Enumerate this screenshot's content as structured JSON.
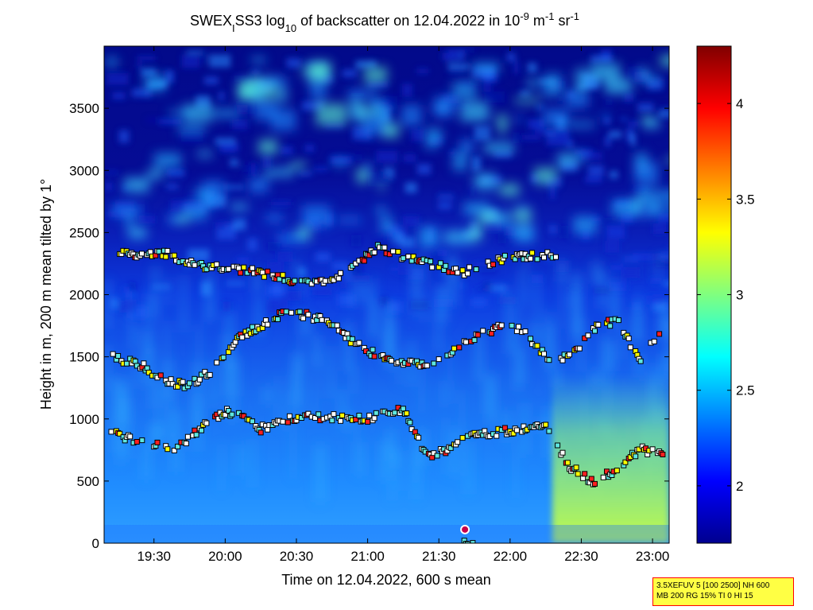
{
  "chart_data": {
    "type": "heatmap",
    "title": "SWEX_I SS3 log10 of backscatter on 12.04.2022 in 10^-9 m^-1 sr^-1",
    "title_parts": {
      "a": "SWEX",
      "sub1": "I",
      "b": "SS3 log",
      "sub2": "10",
      "c": " of backscatter on 12.04.2022 in 10",
      "sup1": "-9",
      "d": " m",
      "sup2": "-1",
      "e": " sr",
      "sup3": "-1"
    },
    "xlabel": "Time on 12.04.2022, 600 s mean",
    "ylabel": "Height in m, 200 m mean tilted by 1°",
    "x_range": [
      "19:09",
      "23:07"
    ],
    "x_ticks": [
      "19:30",
      "20:00",
      "20:30",
      "21:00",
      "21:30",
      "22:00",
      "22:30",
      "23:00"
    ],
    "ylim": [
      0,
      4000
    ],
    "y_ticks": [
      0,
      500,
      1000,
      1500,
      2000,
      2500,
      3000,
      3500
    ],
    "colorbar": {
      "range": [
        1.7,
        4.3
      ],
      "ticks": [
        2,
        2.5,
        3,
        3.5,
        4
      ],
      "colormap": "jet"
    },
    "cloud_layers": [
      {
        "name": "upper",
        "points": [
          [
            "19:12",
            2380
          ],
          [
            "19:22",
            2300
          ],
          [
            "19:35",
            2330
          ],
          [
            "19:45",
            2250
          ],
          [
            "19:55",
            2220
          ],
          [
            "20:05",
            2200
          ],
          [
            "20:15",
            2180
          ],
          [
            "20:30",
            2100
          ],
          [
            "20:45",
            2120
          ],
          [
            "21:05",
            2380
          ],
          [
            "21:15",
            2300
          ],
          [
            "21:25",
            2260
          ],
          [
            "21:40",
            2180
          ],
          [
            "22:00",
            2300
          ],
          [
            "22:10",
            2310
          ],
          [
            "22:20",
            2320
          ]
        ]
      },
      {
        "name": "middle",
        "points": [
          [
            "19:12",
            1500
          ],
          [
            "19:25",
            1430
          ],
          [
            "19:35",
            1300
          ],
          [
            "19:45",
            1270
          ],
          [
            "19:55",
            1400
          ],
          [
            "20:05",
            1650
          ],
          [
            "20:15",
            1750
          ],
          [
            "20:25",
            1860
          ],
          [
            "20:35",
            1830
          ],
          [
            "20:45",
            1770
          ],
          [
            "20:55",
            1600
          ],
          [
            "21:05",
            1500
          ],
          [
            "21:15",
            1440
          ],
          [
            "21:25",
            1450
          ],
          [
            "21:35",
            1530
          ],
          [
            "21:45",
            1650
          ],
          [
            "21:55",
            1740
          ],
          [
            "22:05",
            1720
          ],
          [
            "22:15",
            1500
          ],
          [
            "22:25",
            1500
          ],
          [
            "22:35",
            1720
          ],
          [
            "22:45",
            1800
          ],
          [
            "22:55",
            1460
          ],
          [
            "23:05",
            1780
          ]
        ]
      },
      {
        "name": "lower",
        "points": [
          [
            "19:12",
            900
          ],
          [
            "19:25",
            800
          ],
          [
            "19:40",
            760
          ],
          [
            "19:50",
            930
          ],
          [
            "20:00",
            1060
          ],
          [
            "20:10",
            1020
          ],
          [
            "20:15",
            920
          ],
          [
            "20:25",
            1000
          ],
          [
            "20:35",
            1020
          ],
          [
            "21:00",
            1000
          ],
          [
            "21:15",
            1080
          ],
          [
            "21:25",
            700
          ],
          [
            "21:35",
            750
          ],
          [
            "21:40",
            860
          ],
          [
            "22:15",
            940
          ],
          [
            "22:25",
            620
          ],
          [
            "22:35",
            480
          ],
          [
            "22:45",
            600
          ],
          [
            "22:55",
            760
          ],
          [
            "23:05",
            700
          ]
        ]
      },
      {
        "name": "surface",
        "points": [
          [
            "21:40",
            20
          ],
          [
            "21:45",
            20
          ]
        ]
      }
    ],
    "grid": false,
    "legend": "none"
  },
  "info_box": {
    "line1": "3.5XEFUV 5 [100 2500] NH 600",
    "line2": "MB 200 RG 15% TI 0 HI 15"
  }
}
